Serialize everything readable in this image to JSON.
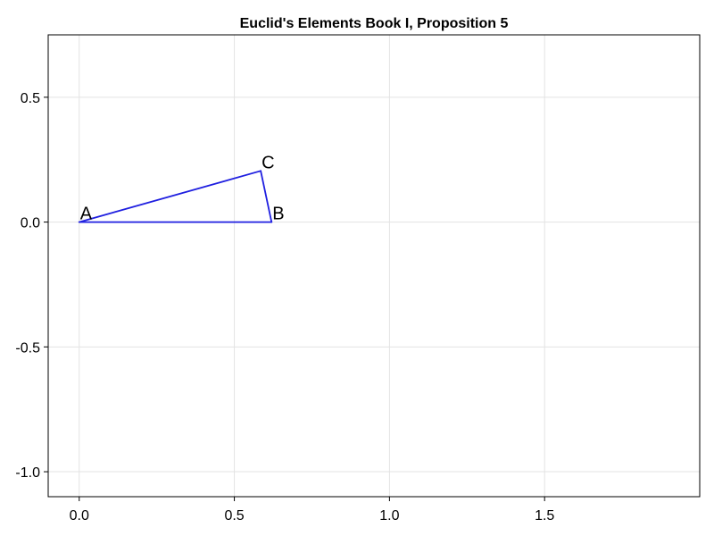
{
  "chart_data": {
    "type": "line",
    "title": "Euclid's Elements Book I, Proposition 5",
    "xlabel": "",
    "ylabel": "",
    "xlim": [
      -0.1,
      2.0
    ],
    "ylim": [
      -1.1,
      0.75
    ],
    "grid": true,
    "x_ticks": [
      {
        "value": 0.0,
        "label": "0.0"
      },
      {
        "value": 0.5,
        "label": "0.5"
      },
      {
        "value": 1.0,
        "label": "1.0"
      },
      {
        "value": 1.5,
        "label": "1.5"
      }
    ],
    "y_ticks": [
      {
        "value": 0.5,
        "label": "0.5"
      },
      {
        "value": 0.0,
        "label": "0.0"
      },
      {
        "value": -0.5,
        "label": "-0.5"
      },
      {
        "value": -1.0,
        "label": "-1.0"
      }
    ],
    "line_color": "#1f1fe0",
    "points": [
      {
        "name": "A",
        "x": 0.0,
        "y": 0.0
      },
      {
        "name": "B",
        "x": 0.62,
        "y": 0.0
      },
      {
        "name": "C",
        "x": 0.585,
        "y": 0.205
      }
    ],
    "segments": [
      [
        "A",
        "B"
      ],
      [
        "B",
        "C"
      ],
      [
        "C",
        "A"
      ]
    ]
  }
}
